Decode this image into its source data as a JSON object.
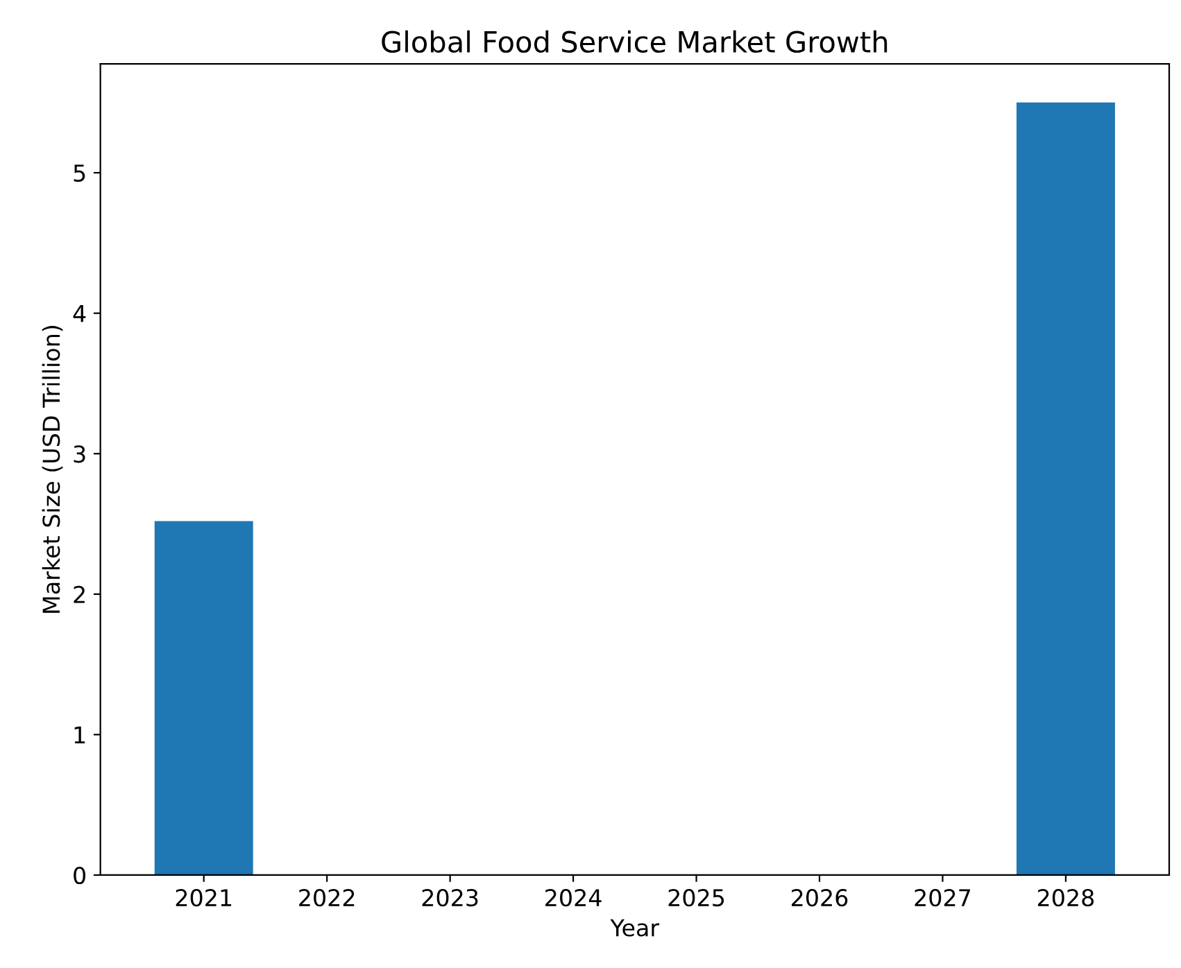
{
  "chart_data": {
    "type": "bar",
    "title": "Global Food Service Market Growth",
    "xlabel": "Year",
    "ylabel": "Market Size (USD Trillion)",
    "x": [
      2021,
      2028
    ],
    "values": [
      2.52,
      5.5
    ],
    "color": "#1f77b4",
    "xlim": [
      2020.16,
      2028.84
    ],
    "xticks": [
      2021,
      2022,
      2023,
      2024,
      2025,
      2026,
      2027,
      2028
    ],
    "ylim": [
      0,
      5.775
    ],
    "yticks": [
      0,
      1,
      2,
      3,
      4,
      5
    ],
    "grid": false
  }
}
